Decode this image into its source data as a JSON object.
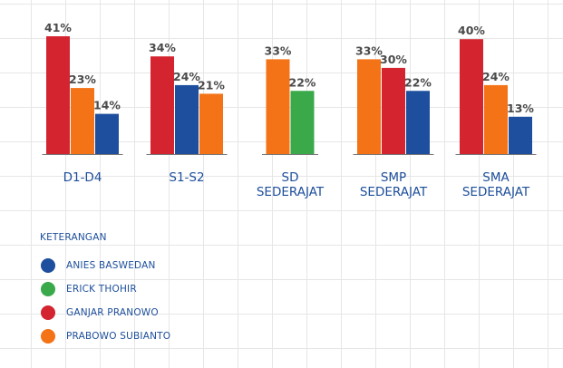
{
  "chart_data": {
    "type": "bar",
    "title": "",
    "xlabel": "",
    "ylabel": "",
    "ylim": [
      0,
      45
    ],
    "groups": [
      {
        "category": "D1-D4",
        "lines": [
          "D1-D4"
        ],
        "bars": [
          {
            "series": "GANJAR PRANOWO",
            "value": 41,
            "label": "41%"
          },
          {
            "series": "PRABOWO SUBIANTO",
            "value": 23,
            "label": "23%"
          },
          {
            "series": "ANIES BASWEDAN",
            "value": 14,
            "label": "14%"
          }
        ]
      },
      {
        "category": "S1-S2",
        "lines": [
          "S1-S2"
        ],
        "bars": [
          {
            "series": "GANJAR PRANOWO",
            "value": 34,
            "label": "34%"
          },
          {
            "series": "ANIES BASWEDAN",
            "value": 24,
            "label": "24%"
          },
          {
            "series": "PRABOWO SUBIANTO",
            "value": 21,
            "label": "21%"
          }
        ]
      },
      {
        "category": "SD SEDERAJAT",
        "lines": [
          "SD",
          "SEDERAJAT"
        ],
        "bars": [
          {
            "series": "PRABOWO SUBIANTO",
            "value": 33,
            "label": "33%"
          },
          {
            "series": "ERICK THOHIR",
            "value": 22,
            "label": "22%"
          }
        ]
      },
      {
        "category": "SMP SEDERAJAT",
        "lines": [
          "SMP",
          "SEDERAJAT"
        ],
        "bars": [
          {
            "series": "PRABOWO SUBIANTO",
            "value": 33,
            "label": "33%"
          },
          {
            "series": "GANJAR PRANOWO",
            "value": 30,
            "label": "30%"
          },
          {
            "series": "ANIES BASWEDAN",
            "value": 22,
            "label": "22%"
          }
        ]
      },
      {
        "category": "SMA SEDERAJAT",
        "lines": [
          "SMA",
          "SEDERAJAT"
        ],
        "bars": [
          {
            "series": "GANJAR PRANOWO",
            "value": 40,
            "label": "40%"
          },
          {
            "series": "PRABOWO SUBIANTO",
            "value": 24,
            "label": "24%"
          },
          {
            "series": "ANIES BASWEDAN",
            "value": 13,
            "label": "13%"
          }
        ]
      }
    ],
    "series_colors": {
      "ANIES BASWEDAN": "#1d4f9e",
      "ERICK THOHIR": "#3aa94a",
      "GANJAR PRANOWO": "#d3242f",
      "PRABOWO SUBIANTO": "#f47316"
    },
    "legend": {
      "title": "KETERANGAN",
      "items": [
        {
          "label": "ANIES BASWEDAN",
          "color": "#1d4f9e"
        },
        {
          "label": "ERICK THOHIR",
          "color": "#3aa94a"
        },
        {
          "label": "GANJAR PRANOWO",
          "color": "#d3242f"
        },
        {
          "label": "PRABOWO SUBIANTO",
          "color": "#f47316"
        }
      ]
    },
    "axis_color": "#777777"
  }
}
